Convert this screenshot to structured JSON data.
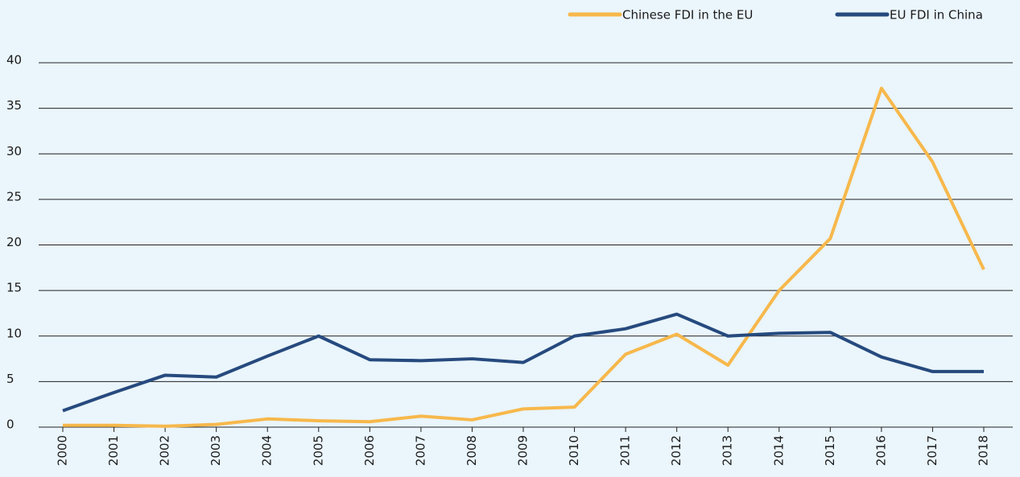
{
  "chart_data": {
    "type": "line",
    "categories": [
      "2000",
      "2001",
      "2002",
      "2003",
      "2004",
      "2005",
      "2006",
      "2007",
      "2008",
      "2009",
      "2010",
      "2011",
      "2012",
      "2013",
      "2014",
      "2015",
      "2016",
      "2017",
      "2018"
    ],
    "series": [
      {
        "name": "Chinese FDI in the EU",
        "color": "#f7b84b",
        "values": [
          0.2,
          0.2,
          0.1,
          0.3,
          0.9,
          0.7,
          0.6,
          1.2,
          0.8,
          2.0,
          2.2,
          8.0,
          10.2,
          6.8,
          15.0,
          20.7,
          37.2,
          29.1,
          17.3
        ]
      },
      {
        "name": "EU FDI in China",
        "color": "#264a7e",
        "values": [
          1.8,
          3.8,
          5.7,
          5.5,
          7.8,
          10.0,
          7.4,
          7.3,
          7.5,
          7.1,
          10.0,
          10.8,
          12.4,
          10.0,
          10.3,
          10.4,
          7.7,
          6.1,
          6.1
        ]
      }
    ],
    "ylim": [
      0,
      40
    ],
    "yticks": [
      0,
      5,
      10,
      15,
      20,
      25,
      30,
      35,
      40
    ],
    "grid": true,
    "legend": "top-right"
  }
}
